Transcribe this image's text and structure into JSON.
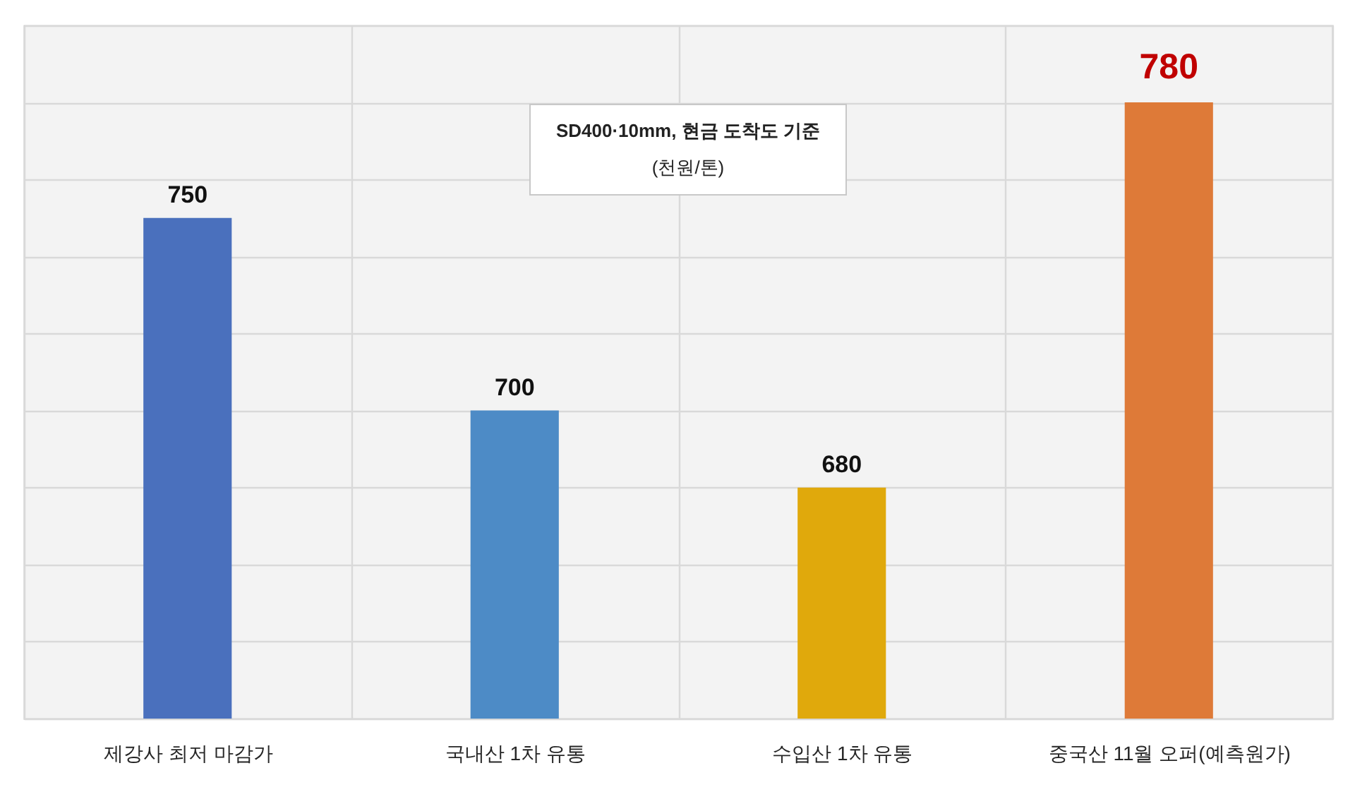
{
  "chart_data": {
    "type": "bar",
    "categories": [
      "제강사 최저 마감가",
      "국내산 1차 유통",
      "수입산 1차 유통",
      "중국산 11월 오퍼(예측원가)"
    ],
    "values": [
      750,
      700,
      680,
      780
    ],
    "colors": [
      "#4a70bd",
      "#4d8bc6",
      "#e0a90c",
      "#de7a38"
    ],
    "value_labels": [
      "750",
      "700",
      "680",
      null
    ],
    "annotations": [
      "SD400·10mm, 현금 도착도 기준",
      "(천원/톤)",
      {
        "text": "780",
        "x": "중국산 11월 오퍼(예측원가)",
        "y": 780
      }
    ],
    "ylim": [
      620,
      800
    ],
    "yticks": [
      {
        "value": 620,
        "label": null
      },
      {
        "value": 640,
        "label": null
      },
      {
        "value": 660,
        "label": null
      },
      {
        "value": 680,
        "label": null
      },
      {
        "value": 700,
        "label": null
      },
      {
        "value": 720,
        "label": null
      },
      {
        "value": 740,
        "label": null
      },
      {
        "value": 760,
        "label": null
      },
      {
        "value": 780,
        "label": null
      },
      {
        "value": 800,
        "label": null
      }
    ],
    "grid": true,
    "tick_labels": "x"
  }
}
